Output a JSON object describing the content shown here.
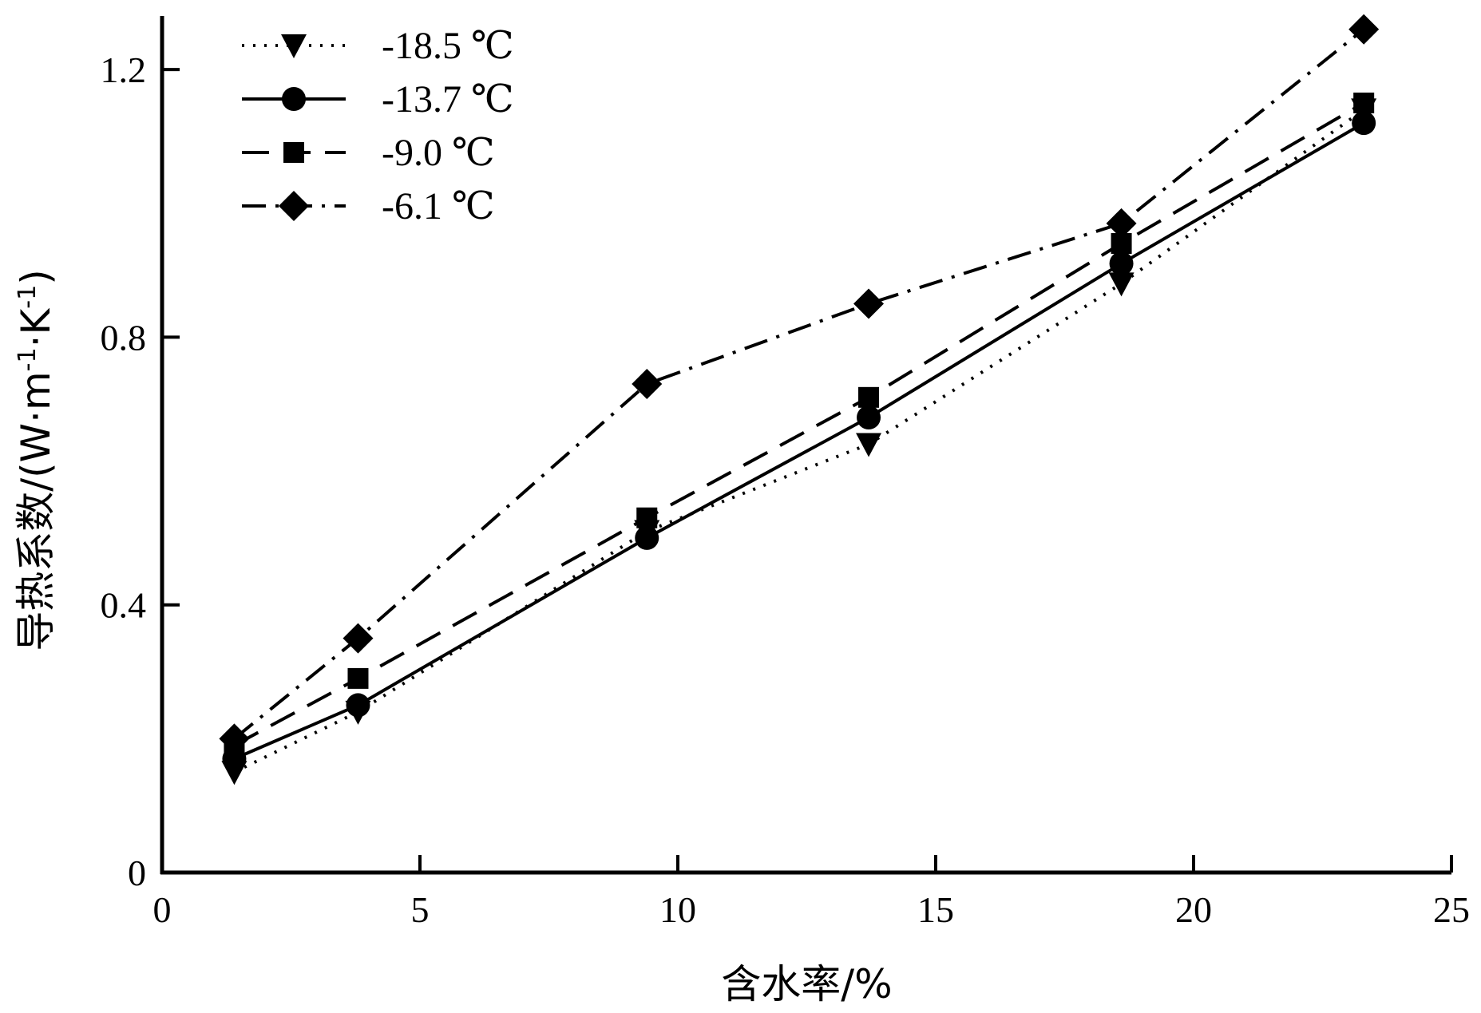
{
  "chart_data": {
    "type": "line",
    "xlabel": "含水率/%",
    "ylabel_main": "导热系数/(W·m",
    "ylabel_sup1": "-1",
    "ylabel_mid": "·K",
    "ylabel_sup2": "-1",
    "ylabel_end": ")",
    "xlim": [
      0,
      25
    ],
    "ylim": [
      0,
      1.28
    ],
    "xticks": [
      0,
      5,
      10,
      15,
      20,
      25
    ],
    "yticks": [
      0,
      0.4,
      0.8,
      1.2
    ],
    "xtick_labels": [
      "0",
      "5",
      "10",
      "15",
      "20",
      "25"
    ],
    "ytick_labels": [
      "0",
      "0.4",
      "0.8",
      "1.2"
    ],
    "grid": false,
    "legend_position": "top-left",
    "series": [
      {
        "name": "-18.5 ℃",
        "marker": "triangle-down",
        "dash": "dotted",
        "x": [
          1.4,
          3.8,
          9.4,
          13.7,
          18.6,
          23.3
        ],
        "y": [
          0.15,
          0.24,
          0.51,
          0.64,
          0.88,
          1.14
        ]
      },
      {
        "name": "-13.7 ℃",
        "marker": "circle",
        "dash": "solid",
        "x": [
          1.4,
          3.8,
          9.4,
          13.7,
          18.6,
          23.3
        ],
        "y": [
          0.17,
          0.25,
          0.5,
          0.68,
          0.91,
          1.12
        ]
      },
      {
        "name": "-9.0 ℃",
        "marker": "square",
        "dash": "dashed",
        "x": [
          1.4,
          3.8,
          9.4,
          13.7,
          18.6,
          23.3
        ],
        "y": [
          0.19,
          0.29,
          0.53,
          0.71,
          0.94,
          1.15
        ]
      },
      {
        "name": "-6.1 ℃",
        "marker": "diamond",
        "dash": "dashdot",
        "x": [
          1.4,
          3.8,
          9.4,
          13.7,
          18.6,
          23.3
        ],
        "y": [
          0.2,
          0.35,
          0.73,
          0.85,
          0.97,
          1.26
        ]
      }
    ]
  }
}
